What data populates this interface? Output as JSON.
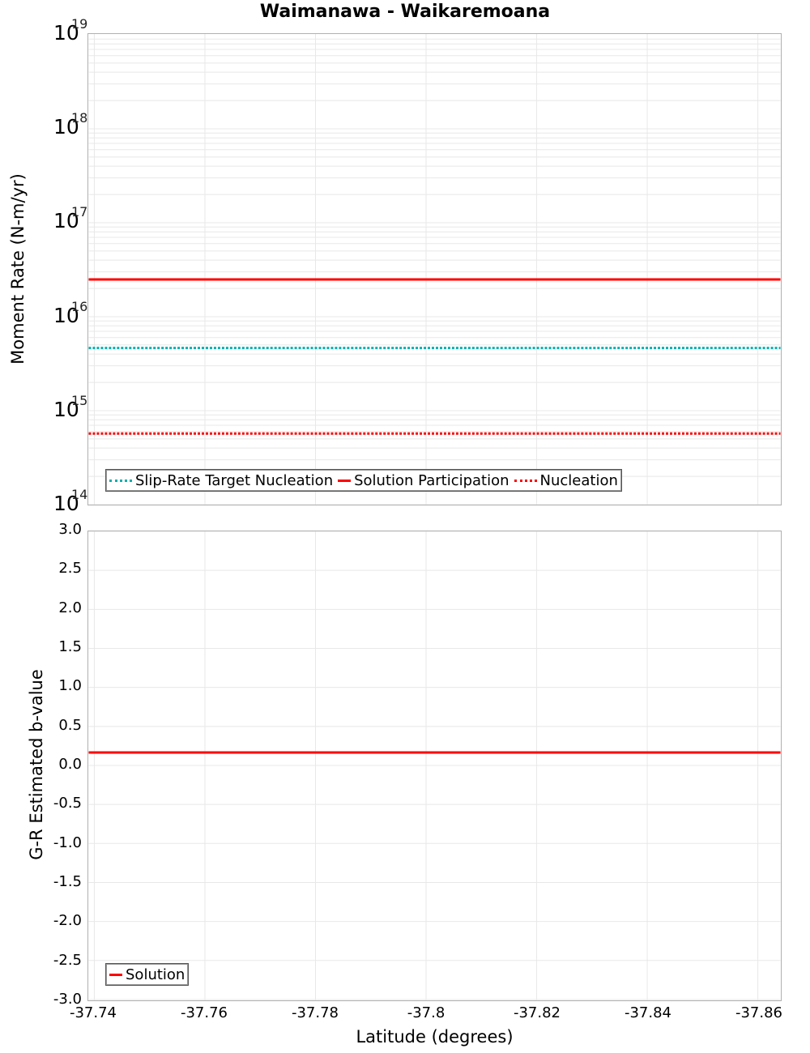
{
  "title": "Waimanawa - Waikaremoana",
  "colors": {
    "slip_rate_target": "#00b0b0",
    "solution": "#ff0000",
    "nucleation": "#ff0000",
    "grid": "#e8e8e8",
    "axis": "#b0b0b0"
  },
  "top_plot": {
    "ylabel": "Moment Rate (N-m/yr)",
    "yticks": [
      {
        "base": "10",
        "exp": "19"
      },
      {
        "base": "10",
        "exp": "18"
      },
      {
        "base": "10",
        "exp": "17"
      },
      {
        "base": "10",
        "exp": "16"
      },
      {
        "base": "10",
        "exp": "15"
      },
      {
        "base": "10",
        "exp": "14"
      }
    ],
    "legend": [
      {
        "label": "Slip-Rate Target Nucleation",
        "style": "dotted",
        "color": "#00b0b0"
      },
      {
        "label": "Solution Participation",
        "style": "solid",
        "color": "#ff0000"
      },
      {
        "label": "Nucleation",
        "style": "dotted",
        "color": "#ff0000"
      }
    ]
  },
  "bottom_plot": {
    "ylabel": "G-R Estimated b-value",
    "yticks": [
      "3.0",
      "2.5",
      "2.0",
      "1.5",
      "1.0",
      "0.5",
      "0.0",
      "-0.5",
      "-1.0",
      "-1.5",
      "-2.0",
      "-2.5",
      "-3.0"
    ],
    "legend": [
      {
        "label": "Solution",
        "style": "solid",
        "color": "#ff0000"
      }
    ]
  },
  "xaxis": {
    "label": "Latitude (degrees)",
    "ticks": [
      "-37.74",
      "-37.76",
      "-37.78",
      "-37.8",
      "-37.82",
      "-37.84",
      "-37.86"
    ]
  },
  "chart_data": [
    {
      "type": "line",
      "title": "Waimanawa - Waikaremoana",
      "xlabel": "Latitude (degrees)",
      "ylabel": "Moment Rate (N-m/yr)",
      "yscale": "log",
      "ylim": [
        100000000000000.0,
        1e+19
      ],
      "xlim": [
        -37.739,
        -37.864
      ],
      "x": [
        -37.739,
        -37.864
      ],
      "grid": true,
      "legend_position": "lower-left",
      "series": [
        {
          "name": "Slip-Rate Target Nucleation",
          "style": "dotted",
          "color": "#00b0b0",
          "values": [
            4500000000000000.0,
            4500000000000000.0
          ]
        },
        {
          "name": "Solution Participation",
          "style": "solid",
          "color": "#ff0000",
          "values": [
            2.4e+16,
            2.4e+16
          ]
        },
        {
          "name": "Nucleation",
          "style": "dotted",
          "color": "#ff0000",
          "values": [
            560000000000000.0,
            560000000000000.0
          ]
        }
      ]
    },
    {
      "type": "line",
      "xlabel": "Latitude (degrees)",
      "ylabel": "G-R Estimated b-value",
      "ylim": [
        -3.0,
        3.0
      ],
      "xlim": [
        -37.739,
        -37.864
      ],
      "x": [
        -37.739,
        -37.864
      ],
      "xticks": [
        "-37.74",
        "-37.76",
        "-37.78",
        "-37.8",
        "-37.82",
        "-37.84",
        "-37.86"
      ],
      "grid": true,
      "legend_position": "lower-left",
      "series": [
        {
          "name": "Solution",
          "style": "solid",
          "color": "#ff0000",
          "values": [
            0.15,
            0.15
          ]
        }
      ]
    }
  ]
}
